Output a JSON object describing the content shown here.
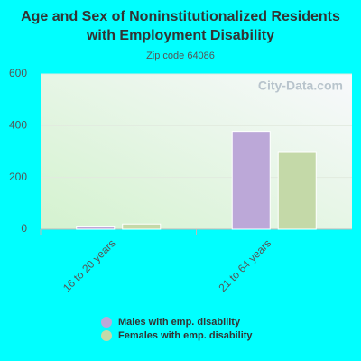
{
  "chart_data": {
    "type": "bar",
    "title": "Age and Sex of Noninstitutionalized Residents with Employment Disability",
    "subtitle": "Zip code 64086",
    "watermark": "City-Data.com",
    "categories": [
      "16 to 20 years",
      "21 to 64 years"
    ],
    "series": [
      {
        "name": "Males with emp. disability",
        "color": "#bca8d8",
        "values": [
          12,
          378
        ]
      },
      {
        "name": "Females with emp. disability",
        "color": "#c4d9a8",
        "values": [
          20,
          300
        ]
      }
    ],
    "ylim": [
      0,
      600
    ],
    "yticks": [
      0,
      200,
      400,
      600
    ],
    "grid": true,
    "legend": "bottom"
  }
}
